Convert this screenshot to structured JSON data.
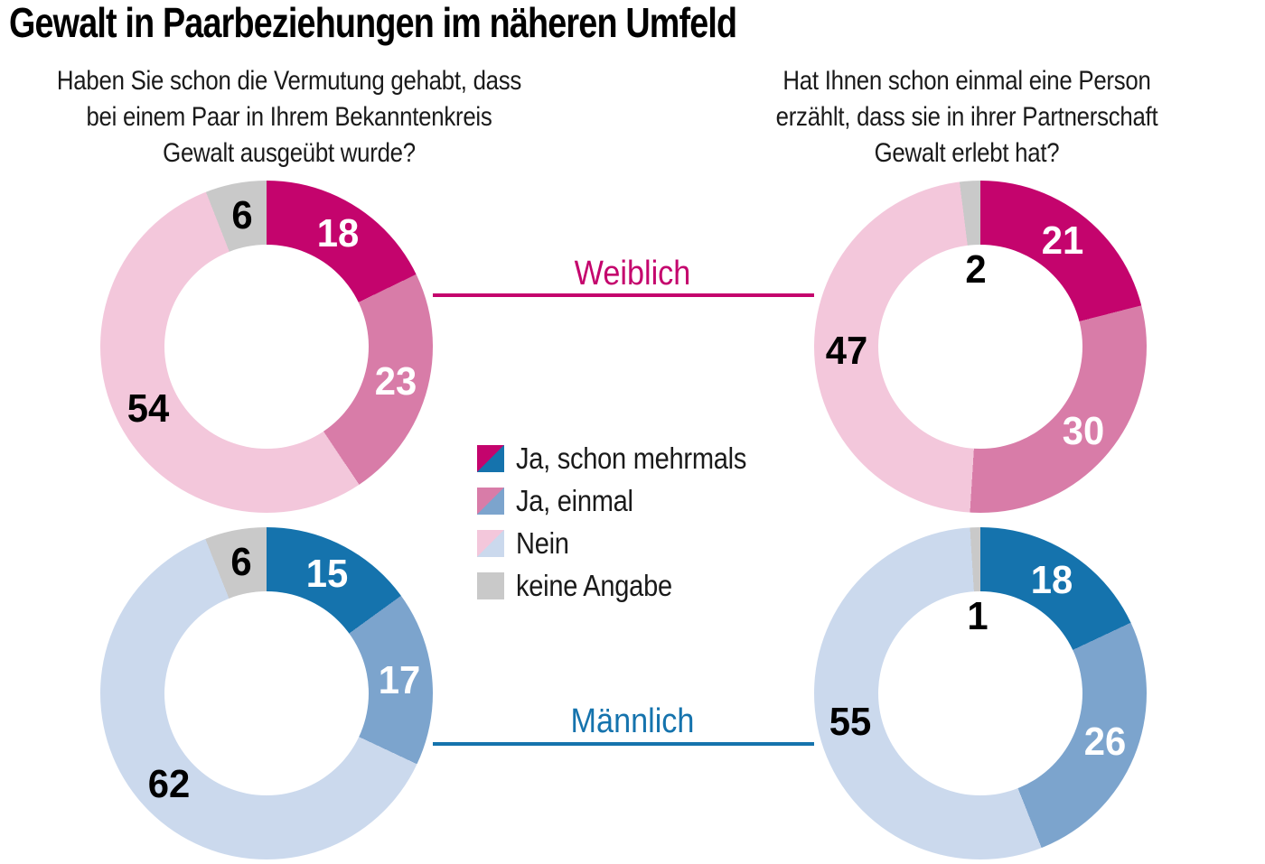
{
  "title": "Gewalt in Paarbeziehungen im näheren Umfeld",
  "questions": {
    "left": "Haben Sie schon die Vermutung gehabt, dass\nbei einem Paar in Ihrem Bekanntenkreis\nGewalt ausgeübt wurde?",
    "right": "Hat Ihnen schon einmal eine Person\nerzählt, dass sie in ihrer Partnerschaft\nGewalt erlebt hat?"
  },
  "group_labels": {
    "female": "Weiblich",
    "male": "Männlich"
  },
  "legend": {
    "items": [
      {
        "label": "Ja, schon mehrmals"
      },
      {
        "label": "Ja, einmal"
      },
      {
        "label": "Nein"
      },
      {
        "label": "keine Angabe"
      }
    ]
  },
  "palette": {
    "magenta_dark": "#c4046d",
    "pink_mid": "#d87ca8",
    "pink_light": "#f3c7db",
    "blue_dark": "#1573ad",
    "blue_mid": "#7ca4cd",
    "blue_light": "#cbd9ed",
    "gray": "#c9c9c9",
    "label_on_dark": "#ffffff",
    "label_on_light": "#000000"
  },
  "chart_data": {
    "type": "pie",
    "subtype": "donut",
    "unit": "percent",
    "categories": [
      "Ja, schon mehrmals",
      "Ja, einmal",
      "Nein",
      "keine Angabe"
    ],
    "legend_position": "center",
    "rows": [
      {
        "group": "Weiblich",
        "theme": [
          "magenta_dark",
          "pink_mid",
          "pink_light",
          "gray"
        ],
        "charts": [
          {
            "question_key": "left",
            "values": [
              18,
              23,
              54,
              6
            ]
          },
          {
            "question_key": "right",
            "values": [
              21,
              30,
              47,
              2
            ]
          }
        ]
      },
      {
        "group": "Männlich",
        "theme": [
          "blue_dark",
          "blue_mid",
          "blue_light",
          "gray"
        ],
        "charts": [
          {
            "question_key": "left",
            "values": [
              15,
              17,
              62,
              6
            ]
          },
          {
            "question_key": "right",
            "values": [
              18,
              26,
              55,
              1
            ]
          }
        ]
      }
    ]
  }
}
